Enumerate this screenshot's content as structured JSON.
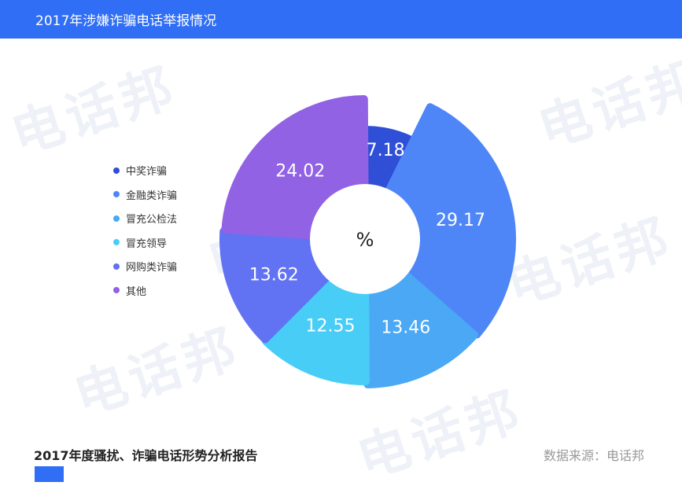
{
  "header": {
    "title": "2017年涉嫌诈骗电话举报情况"
  },
  "watermark": {
    "text": "电话邦"
  },
  "chart_data": {
    "type": "pie",
    "variant": "rose-donut",
    "center_label": "%",
    "categories": [
      "中奖诈骗",
      "金融类诈骗",
      "冒充公检法",
      "冒充领导",
      "网购类诈骗",
      "其他"
    ],
    "values": [
      7.18,
      29.17,
      13.46,
      12.55,
      13.62,
      24.02
    ],
    "value_labels": [
      "7.18",
      "29.17",
      "13.46",
      "12.55",
      "13.62",
      "24.02"
    ],
    "colors": [
      "#2e4fd6",
      "#4f86f7",
      "#4aa8f5",
      "#48cdf7",
      "#6172f3",
      "#9162e4"
    ],
    "legend_position": "left"
  },
  "footer": {
    "report_title": "2017年度骚扰、诈骗电话形势分析报告",
    "source": "数据来源：电话邦"
  }
}
